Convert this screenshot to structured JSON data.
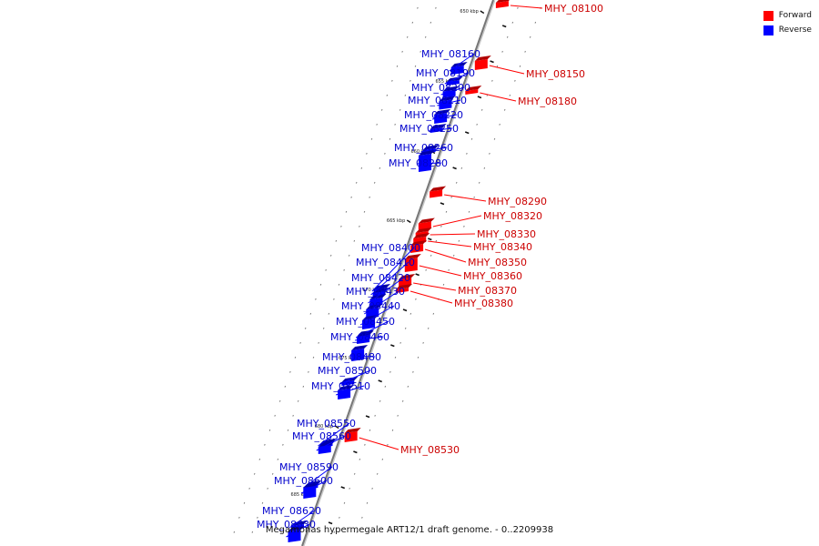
{
  "legend": {
    "forward_label": "Forward",
    "forward_color": "#ff0000",
    "reverse_label": "Reverse",
    "reverse_color": "#0000ff"
  },
  "caption": "Megamonas hypermegale ART12/1 draft genome. - 0..2209938",
  "ticks": [
    "650 kbp",
    "655 kbp",
    "660 kbp",
    "665 kbp",
    "670 kbp",
    "675 kbp",
    "680 kbp",
    "685 kbp"
  ],
  "genes": [
    {
      "name": "MHY_08100",
      "strand": "forward"
    },
    {
      "name": "MHY_08150",
      "strand": "forward"
    },
    {
      "name": "MHY_08180",
      "strand": "forward"
    },
    {
      "name": "MHY_08160",
      "strand": "reverse"
    },
    {
      "name": "MHY_08190",
      "strand": "reverse"
    },
    {
      "name": "MHY_08200",
      "strand": "reverse"
    },
    {
      "name": "MHY_08210",
      "strand": "reverse"
    },
    {
      "name": "MHY_08220",
      "strand": "reverse"
    },
    {
      "name": "MHY_08250",
      "strand": "reverse"
    },
    {
      "name": "MHY_08260",
      "strand": "reverse"
    },
    {
      "name": "MHY_08280",
      "strand": "reverse"
    },
    {
      "name": "MHY_08290",
      "strand": "forward"
    },
    {
      "name": "MHY_08320",
      "strand": "forward"
    },
    {
      "name": "MHY_08330",
      "strand": "forward"
    },
    {
      "name": "MHY_08340",
      "strand": "forward"
    },
    {
      "name": "MHY_08350",
      "strand": "forward"
    },
    {
      "name": "MHY_08360",
      "strand": "forward"
    },
    {
      "name": "MHY_08370",
      "strand": "forward"
    },
    {
      "name": "MHY_08380",
      "strand": "forward"
    },
    {
      "name": "MHY_08400",
      "strand": "reverse"
    },
    {
      "name": "MHY_08410",
      "strand": "reverse"
    },
    {
      "name": "MHY_08420",
      "strand": "reverse"
    },
    {
      "name": "MHY_08430",
      "strand": "reverse"
    },
    {
      "name": "MHY_08440",
      "strand": "reverse"
    },
    {
      "name": "MHY_08450",
      "strand": "reverse"
    },
    {
      "name": "MHY_08460",
      "strand": "reverse"
    },
    {
      "name": "MHY_08480",
      "strand": "reverse"
    },
    {
      "name": "MHY_08500",
      "strand": "reverse"
    },
    {
      "name": "MHY_08510",
      "strand": "reverse"
    },
    {
      "name": "MHY_08530",
      "strand": "forward"
    },
    {
      "name": "MHY_08550",
      "strand": "reverse"
    },
    {
      "name": "MHY_08560",
      "strand": "reverse"
    },
    {
      "name": "MHY_08590",
      "strand": "reverse"
    },
    {
      "name": "MHY_08600",
      "strand": "reverse"
    },
    {
      "name": "MHY_08620",
      "strand": "reverse"
    },
    {
      "name": "MHY_08630",
      "strand": "reverse"
    }
  ]
}
